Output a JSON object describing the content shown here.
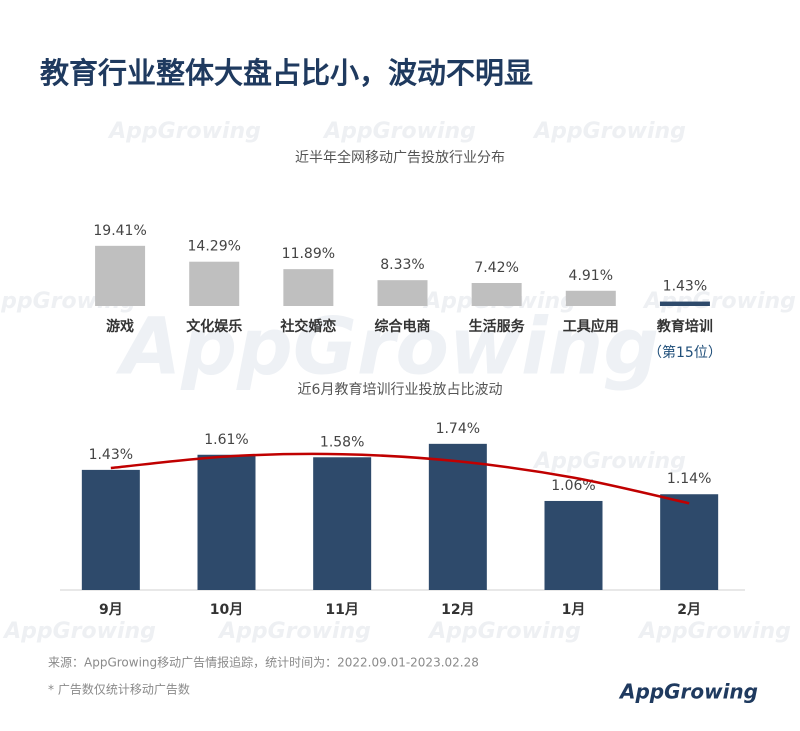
{
  "header": {
    "title": "教育行业整体大盘占比小，波动不明显"
  },
  "watermark": "AppGrowing",
  "chart_data": [
    {
      "type": "bar",
      "title": "近半年全网移动广告投放行业分布",
      "categories": [
        "游戏",
        "文化娱乐",
        "社交婚恋",
        "综合电商",
        "生活服务",
        "工具应用",
        "教育培训"
      ],
      "values": [
        19.41,
        14.29,
        11.89,
        8.33,
        7.42,
        4.91,
        1.43
      ],
      "value_labels": [
        "19.41%",
        "14.29%",
        "11.89%",
        "8.33%",
        "7.42%",
        "4.91%",
        "1.43%"
      ],
      "colors": [
        "#bfbfbf",
        "#bfbfbf",
        "#bfbfbf",
        "#bfbfbf",
        "#bfbfbf",
        "#bfbfbf",
        "#2e4a6b"
      ],
      "annotation": "（第15位）"
    },
    {
      "type": "bar",
      "title": "近6月教育培训行业投放占比波动",
      "categories": [
        "9月",
        "10月",
        "11月",
        "12月",
        "1月",
        "2月"
      ],
      "values": [
        1.43,
        1.61,
        1.58,
        1.74,
        1.06,
        1.14
      ],
      "value_labels": [
        "1.43%",
        "1.61%",
        "1.58%",
        "1.74%",
        "1.06%",
        "1.14%"
      ],
      "color": "#2e4a6b",
      "trendline": {
        "type": "polynomial",
        "color": "#c00000"
      }
    }
  ],
  "footer": {
    "source": "来源：AppGrowing移动广告情报追踪，统计时间为：2022.09.01-2023.02.28",
    "note": "* 广告数仅统计移动广告数",
    "logo": "AppGrowing"
  }
}
